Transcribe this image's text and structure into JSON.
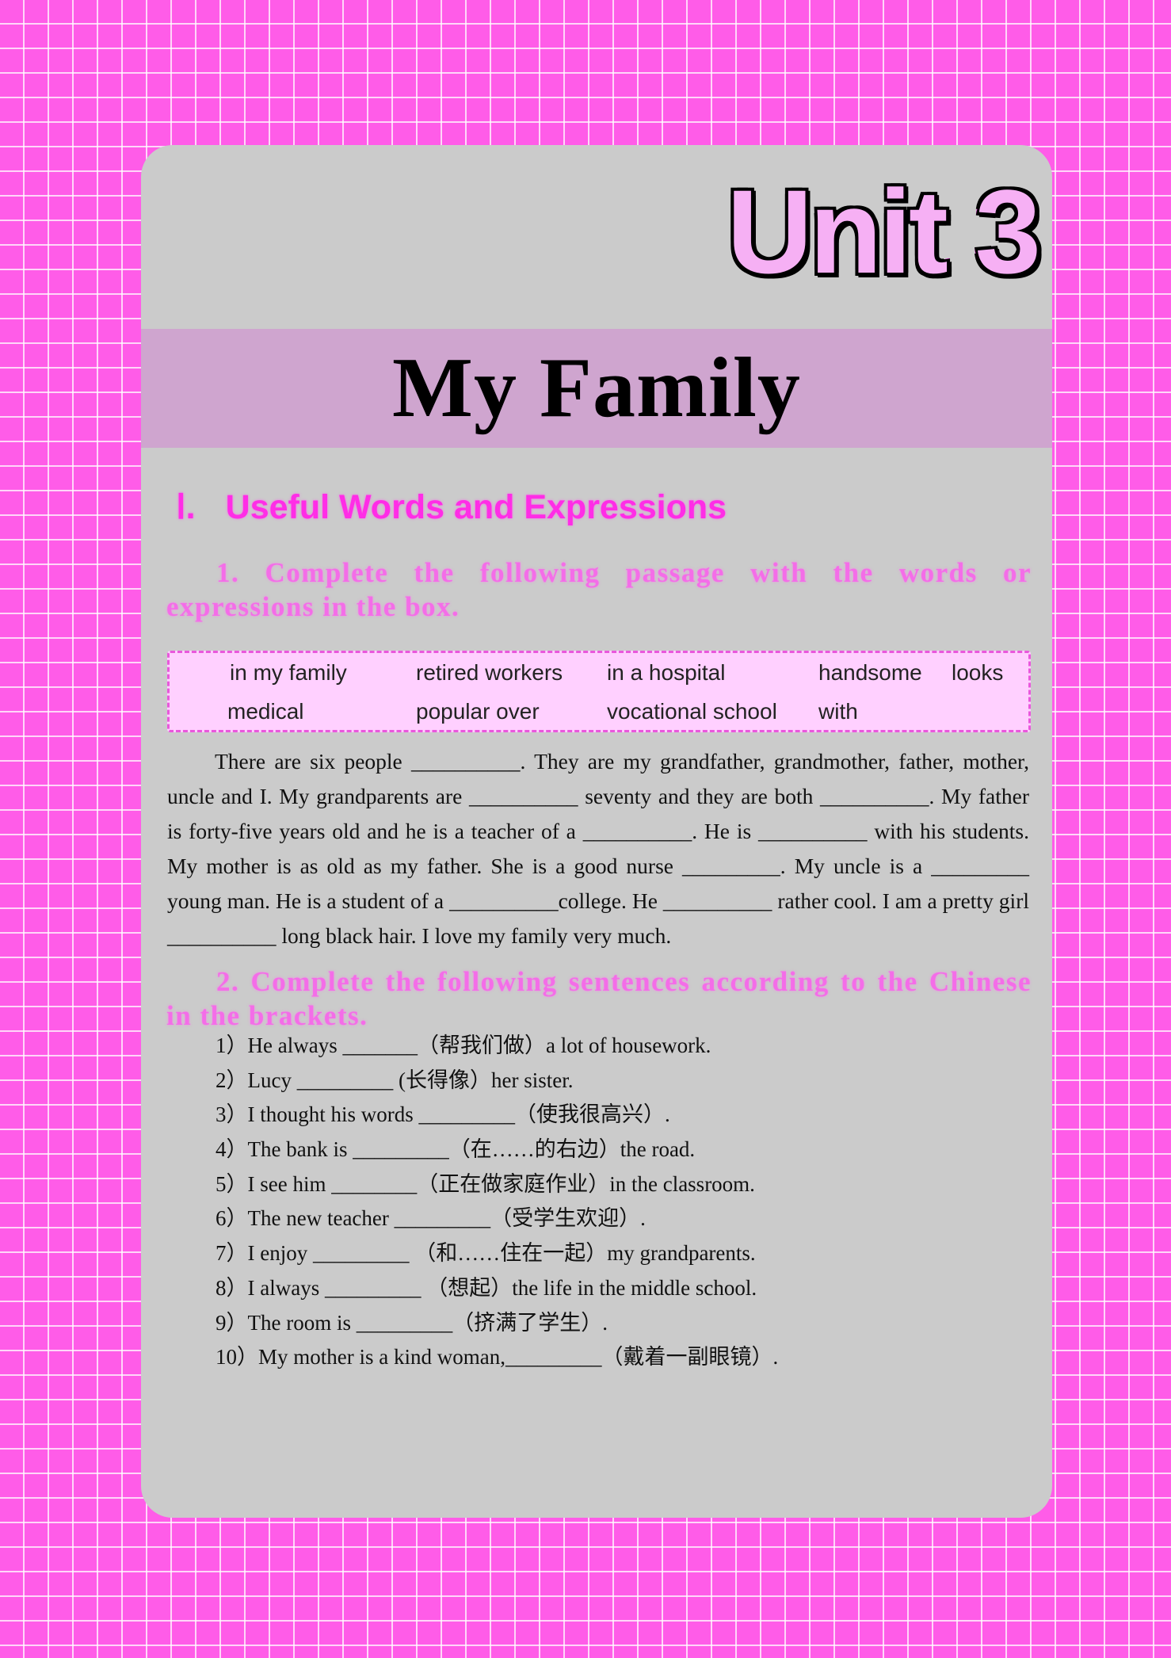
{
  "header": {
    "unit_title": "Unit 3",
    "page_title": "My Family"
  },
  "section1": {
    "number": "Ⅰ.",
    "title": "Useful Words and Expressions"
  },
  "exercise1": {
    "instruction": "1. Complete the following passage with the words or expressions in the box.",
    "word_box": {
      "row1": [
        "in my family",
        "retired workers",
        "in a hospital",
        "handsome",
        "looks"
      ],
      "row2": [
        "medical",
        "popular  over",
        "vocational school",
        "with"
      ]
    },
    "passage": "There are six people __________. They are my grandfather, grandmother, father, mother, uncle and I. My grandparents are __________ seventy and they are both __________. My father is forty-five years old and he is a teacher of a __________. He is __________ with his students. My mother is as old as my father. She is a good nurse _________. My uncle is a _________ young man. He is a student of a __________college. He __________ rather cool. I am a pretty girl __________ long black hair. I love my family very much."
  },
  "exercise2": {
    "instruction": "2. Complete the following sentences according to the Chinese in the brackets.",
    "sentences": [
      "1）He always _______（帮我们做）a lot of housework.",
      "2）Lucy _________ (长得像）her sister.",
      "3）I thought his words _________（使我很高兴）.",
      "4）The bank is _________（在……的右边）the road.",
      "5）I see him ________（正在做家庭作业）in the classroom.",
      "6）The new teacher _________（受学生欢迎）.",
      "7）I enjoy _________ （和……住在一起）my grandparents.",
      "8）I always _________ （想起）the life in the middle school.",
      "9）The room is _________（挤满了学生）.",
      "10）My mother is a kind woman,_________（戴着一副眼镜）."
    ]
  },
  "colors": {
    "background": "#ff5ce8",
    "card": "#cbcbcb",
    "title_band": "#cfa5cf",
    "heading_pink": "#ff2de6",
    "word_box_fill": "#ffd0ff"
  }
}
